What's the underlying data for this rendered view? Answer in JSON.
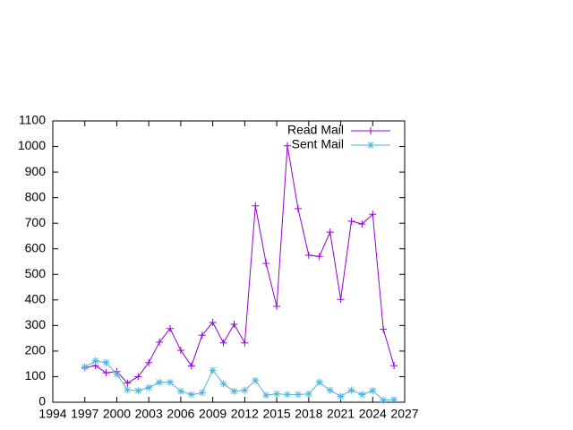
{
  "chart_data": {
    "type": "line",
    "x": [
      1997,
      1998,
      1999,
      2000,
      2001,
      2002,
      2003,
      2004,
      2005,
      2006,
      2007,
      2008,
      2009,
      2010,
      2011,
      2012,
      2013,
      2014,
      2015,
      2016,
      2017,
      2018,
      2019,
      2020,
      2021,
      2022,
      2023,
      2024,
      2025,
      2026
    ],
    "series": [
      {
        "name": "Read Mail",
        "color": "#9400d3",
        "marker": "+",
        "values": [
          135,
          143,
          115,
          120,
          75,
          100,
          155,
          235,
          288,
          203,
          142,
          262,
          312,
          232,
          305,
          232,
          768,
          543,
          375,
          1003,
          757,
          575,
          570,
          665,
          402,
          708,
          697,
          735,
          285,
          143
        ]
      },
      {
        "name": "Sent Mail",
        "color": "#4eb3dc",
        "marker": "*",
        "values": [
          137,
          162,
          155,
          110,
          48,
          45,
          57,
          78,
          78,
          43,
          30,
          37,
          125,
          72,
          43,
          47,
          85,
          27,
          33,
          30,
          30,
          32,
          78,
          47,
          23,
          47,
          30,
          45,
          8,
          10
        ]
      }
    ],
    "xlim": [
      1994,
      2027
    ],
    "xticks": [
      1994,
      1997,
      2000,
      2003,
      2006,
      2009,
      2012,
      2015,
      2018,
      2021,
      2024,
      2027
    ],
    "ylim": [
      0,
      1100
    ],
    "yticks": [
      0,
      100,
      200,
      300,
      400,
      500,
      600,
      700,
      800,
      900,
      1000,
      1100
    ],
    "legend": "top-right"
  }
}
